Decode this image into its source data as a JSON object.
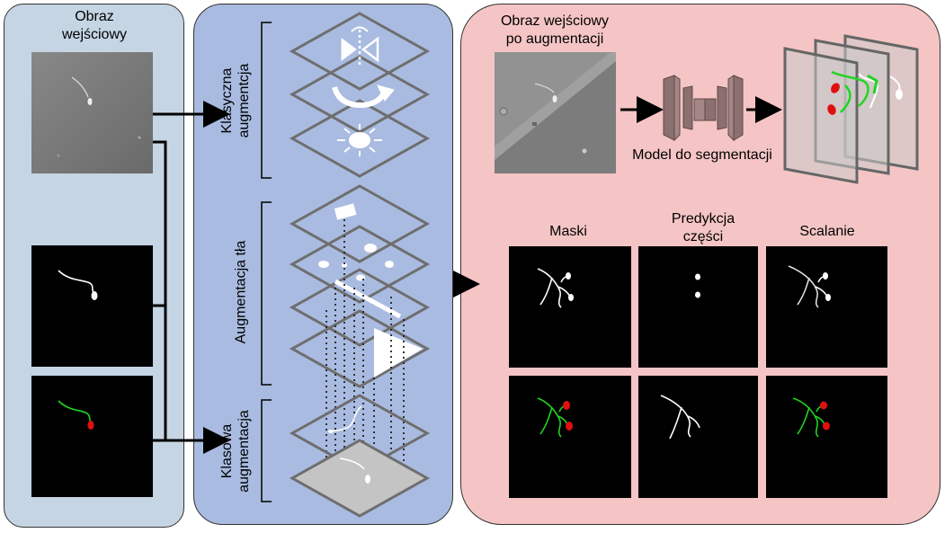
{
  "panels": {
    "input": {
      "title_line1": "Obraz",
      "title_line2": "wejściowy"
    },
    "augmentation": {
      "classic": "Klasyczna augmentcja",
      "classic_line1": "Klasyczna",
      "classic_line2": "augmentcja",
      "background": "Augmentacja tła",
      "class_line1": "Klasowa",
      "class_line2": "augmentacja"
    },
    "output": {
      "augmented_line1": "Obraz wejściowy",
      "augmented_line2": "po augmentacji",
      "model": "Model do segmentacji",
      "col_masks": "Maski",
      "col_pred_line1": "Predykcja",
      "col_pred_line2": "części",
      "col_merge": "Scalanie"
    }
  },
  "colors": {
    "input_panel": "#c5d5e4",
    "aug_panel": "#a9bbe0",
    "output_panel": "#f5c5c5",
    "plane_stroke": "#6e6e6e",
    "model_block": "#8c6f6f",
    "tail_green": "#1fd51f",
    "head_red": "#e01010"
  },
  "icons": [
    "flip-icon",
    "rotate-icon",
    "brightness-icon",
    "arrow-right-icon"
  ]
}
